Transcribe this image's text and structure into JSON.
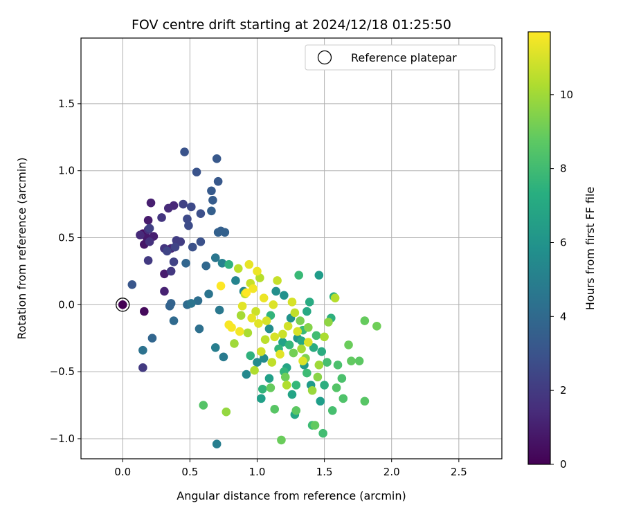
{
  "chart_data": {
    "type": "scatter",
    "title": "FOV centre drift starting at 2024/12/18 01:25:50",
    "xlabel": "Angular distance from reference (arcmin)",
    "ylabel": "Rotation from reference (arcmin)",
    "xlim": [
      -0.31,
      2.82
    ],
    "ylim": [
      -1.15,
      1.99
    ],
    "xticks": [
      0.0,
      0.5,
      1.0,
      1.5,
      2.0,
      2.5
    ],
    "xtick_labels": [
      "0.0",
      "0.5",
      "1.0",
      "1.5",
      "2.0",
      "2.5"
    ],
    "yticks": [
      -1.0,
      -0.5,
      0.0,
      0.5,
      1.0,
      1.5
    ],
    "ytick_labels": [
      "−1.0",
      "−0.5",
      "0.0",
      "0.5",
      "1.0",
      "1.5"
    ],
    "grid": true,
    "legend": {
      "position": "top-right",
      "entries": [
        "Reference platepar"
      ]
    },
    "reference_point": {
      "x": 0.0,
      "y": 0.0
    },
    "colorbar": {
      "label": "Hours from first FF file",
      "colormap": "viridis",
      "range": [
        0,
        11.7
      ],
      "ticks": [
        0,
        2,
        4,
        6,
        8,
        10
      ],
      "tick_labels": [
        "0",
        "2",
        "4",
        "6",
        "8",
        "10"
      ]
    },
    "points": [
      {
        "x": 0.16,
        "y": -0.05,
        "h": 0.3
      },
      {
        "x": 0.15,
        "y": 0.53,
        "h": 0.5
      },
      {
        "x": 0.16,
        "y": 0.45,
        "h": 0.7
      },
      {
        "x": 0.18,
        "y": 0.5,
        "h": 0.8
      },
      {
        "x": 0.19,
        "y": 0.63,
        "h": 0.9
      },
      {
        "x": 0.21,
        "y": 0.76,
        "h": 1.0
      },
      {
        "x": 0.23,
        "y": 0.51,
        "h": 1.0
      },
      {
        "x": 0.31,
        "y": 0.23,
        "h": 0.9
      },
      {
        "x": 0.31,
        "y": 0.1,
        "h": 1.1
      },
      {
        "x": 0.33,
        "y": 0.41,
        "h": 1.2
      },
      {
        "x": 0.36,
        "y": 0.42,
        "h": 1.3
      },
      {
        "x": 0.38,
        "y": 0.74,
        "h": 1.3
      },
      {
        "x": 0.34,
        "y": 0.72,
        "h": 1.4
      },
      {
        "x": 0.13,
        "y": 0.52,
        "h": 1.4
      },
      {
        "x": 0.19,
        "y": 0.56,
        "h": 1.6
      },
      {
        "x": 0.2,
        "y": 0.47,
        "h": 1.7
      },
      {
        "x": 0.29,
        "y": 0.65,
        "h": 1.8
      },
      {
        "x": 0.31,
        "y": 0.42,
        "h": 1.8
      },
      {
        "x": 0.36,
        "y": 0.25,
        "h": 1.9
      },
      {
        "x": 0.19,
        "y": 0.33,
        "h": 2.0
      },
      {
        "x": 0.15,
        "y": -0.47,
        "h": 2.0
      },
      {
        "x": 0.4,
        "y": 0.48,
        "h": 2.1
      },
      {
        "x": 0.43,
        "y": 0.47,
        "h": 2.1
      },
      {
        "x": 0.2,
        "y": 0.57,
        "h": 2.2
      },
      {
        "x": 0.38,
        "y": 0.32,
        "h": 2.3
      },
      {
        "x": 0.45,
        "y": 0.75,
        "h": 2.3
      },
      {
        "x": 0.39,
        "y": 0.43,
        "h": 2.4
      },
      {
        "x": 0.33,
        "y": 0.4,
        "h": 2.4
      },
      {
        "x": 0.51,
        "y": 0.73,
        "h": 2.6
      },
      {
        "x": 0.48,
        "y": 0.64,
        "h": 2.6
      },
      {
        "x": 0.49,
        "y": 0.59,
        "h": 2.7
      },
      {
        "x": 0.58,
        "y": 0.68,
        "h": 2.8
      },
      {
        "x": 0.58,
        "y": 0.47,
        "h": 2.9
      },
      {
        "x": 0.52,
        "y": 0.43,
        "h": 2.9
      },
      {
        "x": 0.55,
        "y": 0.99,
        "h": 3.0
      },
      {
        "x": 0.46,
        "y": 1.14,
        "h": 3.0
      },
      {
        "x": 0.07,
        "y": 0.15,
        "h": 3.1
      },
      {
        "x": 0.71,
        "y": 0.92,
        "h": 3.2
      },
      {
        "x": 0.7,
        "y": 1.09,
        "h": 3.2
      },
      {
        "x": 0.66,
        "y": 0.85,
        "h": 3.3
      },
      {
        "x": 0.67,
        "y": 0.78,
        "h": 3.4
      },
      {
        "x": 0.66,
        "y": 0.7,
        "h": 3.5
      },
      {
        "x": 0.73,
        "y": 0.55,
        "h": 3.5
      },
      {
        "x": 0.71,
        "y": 0.54,
        "h": 3.6
      },
      {
        "x": 0.76,
        "y": 0.54,
        "h": 3.6
      },
      {
        "x": 0.36,
        "y": 0.01,
        "h": 3.7
      },
      {
        "x": 0.35,
        "y": -0.01,
        "h": 3.7
      },
      {
        "x": 0.22,
        "y": -0.25,
        "h": 3.8
      },
      {
        "x": 0.47,
        "y": 0.31,
        "h": 3.8
      },
      {
        "x": 0.62,
        "y": 0.29,
        "h": 3.9
      },
      {
        "x": 0.38,
        "y": -0.12,
        "h": 4.0
      },
      {
        "x": 0.48,
        "y": 0.0,
        "h": 4.1
      },
      {
        "x": 0.56,
        "y": 0.03,
        "h": 4.2
      },
      {
        "x": 0.57,
        "y": -0.18,
        "h": 4.3
      },
      {
        "x": 0.15,
        "y": -0.34,
        "h": 4.4
      },
      {
        "x": 0.51,
        "y": 0.01,
        "h": 4.5
      },
      {
        "x": 0.64,
        "y": 0.08,
        "h": 4.5
      },
      {
        "x": 0.69,
        "y": 0.35,
        "h": 4.6
      },
      {
        "x": 0.72,
        "y": -0.04,
        "h": 4.7
      },
      {
        "x": 0.75,
        "y": -0.39,
        "h": 4.8
      },
      {
        "x": 0.69,
        "y": -0.32,
        "h": 5.0
      },
      {
        "x": 0.7,
        "y": -1.04,
        "h": 5.0
      },
      {
        "x": 0.74,
        "y": 0.31,
        "h": 5.2
      },
      {
        "x": 0.84,
        "y": 0.18,
        "h": 5.3
      },
      {
        "x": 0.9,
        "y": 0.1,
        "h": 5.4
      },
      {
        "x": 0.92,
        "y": -0.52,
        "h": 5.5
      },
      {
        "x": 1.0,
        "y": -0.43,
        "h": 5.6
      },
      {
        "x": 1.05,
        "y": -0.4,
        "h": 5.6
      },
      {
        "x": 1.09,
        "y": -0.18,
        "h": 5.7
      },
      {
        "x": 1.14,
        "y": 0.1,
        "h": 5.8
      },
      {
        "x": 1.2,
        "y": 0.07,
        "h": 5.9
      },
      {
        "x": 1.25,
        "y": -0.1,
        "h": 6.0
      },
      {
        "x": 1.3,
        "y": -0.25,
        "h": 6.1
      },
      {
        "x": 1.35,
        "y": -0.45,
        "h": 6.2
      },
      {
        "x": 1.4,
        "y": -0.6,
        "h": 6.3
      },
      {
        "x": 1.46,
        "y": 0.22,
        "h": 6.4
      },
      {
        "x": 1.47,
        "y": -0.72,
        "h": 6.5
      },
      {
        "x": 1.03,
        "y": -0.7,
        "h": 6.6
      },
      {
        "x": 1.09,
        "y": -0.55,
        "h": 6.6
      },
      {
        "x": 1.19,
        "y": -0.28,
        "h": 6.7
      },
      {
        "x": 1.22,
        "y": -0.47,
        "h": 6.8
      },
      {
        "x": 1.26,
        "y": -0.67,
        "h": 6.8
      },
      {
        "x": 1.28,
        "y": -0.82,
        "h": 6.9
      },
      {
        "x": 1.33,
        "y": -0.27,
        "h": 7.0
      },
      {
        "x": 1.37,
        "y": -0.05,
        "h": 7.0
      },
      {
        "x": 1.39,
        "y": 0.02,
        "h": 7.1
      },
      {
        "x": 1.42,
        "y": -0.32,
        "h": 7.2
      },
      {
        "x": 1.48,
        "y": -0.35,
        "h": 7.2
      },
      {
        "x": 1.5,
        "y": -0.6,
        "h": 7.3
      },
      {
        "x": 1.55,
        "y": -0.1,
        "h": 7.4
      },
      {
        "x": 1.57,
        "y": 0.06,
        "h": 7.4
      },
      {
        "x": 0.79,
        "y": 0.3,
        "h": 7.5
      },
      {
        "x": 0.95,
        "y": -0.38,
        "h": 7.5
      },
      {
        "x": 1.04,
        "y": -0.63,
        "h": 7.6
      },
      {
        "x": 1.1,
        "y": -0.08,
        "h": 7.6
      },
      {
        "x": 1.16,
        "y": -0.33,
        "h": 7.7
      },
      {
        "x": 1.2,
        "y": -0.5,
        "h": 7.7
      },
      {
        "x": 1.24,
        "y": -0.3,
        "h": 7.8
      },
      {
        "x": 1.29,
        "y": -0.6,
        "h": 7.8
      },
      {
        "x": 1.31,
        "y": 0.22,
        "h": 7.9
      },
      {
        "x": 1.34,
        "y": -0.19,
        "h": 7.9
      },
      {
        "x": 1.37,
        "y": -0.51,
        "h": 8.0
      },
      {
        "x": 1.41,
        "y": -0.9,
        "h": 8.0
      },
      {
        "x": 1.44,
        "y": -0.23,
        "h": 8.1
      },
      {
        "x": 1.49,
        "y": -0.96,
        "h": 8.1
      },
      {
        "x": 1.52,
        "y": -0.43,
        "h": 8.2
      },
      {
        "x": 1.56,
        "y": -0.79,
        "h": 8.2
      },
      {
        "x": 1.6,
        "y": -0.45,
        "h": 8.3
      },
      {
        "x": 1.63,
        "y": -0.55,
        "h": 8.3
      },
      {
        "x": 1.64,
        "y": -0.7,
        "h": 8.4
      },
      {
        "x": 0.6,
        "y": -0.75,
        "h": 8.5
      },
      {
        "x": 1.13,
        "y": -0.78,
        "h": 8.6
      },
      {
        "x": 1.29,
        "y": -0.79,
        "h": 8.7
      },
      {
        "x": 1.43,
        "y": -0.9,
        "h": 8.8
      },
      {
        "x": 1.1,
        "y": -0.62,
        "h": 8.9
      },
      {
        "x": 1.18,
        "y": -1.01,
        "h": 9.0
      },
      {
        "x": 1.21,
        "y": -0.54,
        "h": 9.1
      },
      {
        "x": 1.27,
        "y": -0.36,
        "h": 9.2
      },
      {
        "x": 1.32,
        "y": -0.12,
        "h": 9.3
      },
      {
        "x": 1.36,
        "y": -0.4,
        "h": 9.4
      },
      {
        "x": 1.38,
        "y": -0.17,
        "h": 9.5
      },
      {
        "x": 1.45,
        "y": -0.54,
        "h": 9.6
      },
      {
        "x": 1.53,
        "y": -0.13,
        "h": 9.7
      },
      {
        "x": 1.8,
        "y": -0.12,
        "h": 8.9
      },
      {
        "x": 1.89,
        "y": -0.16,
        "h": 9.1
      },
      {
        "x": 1.76,
        "y": -0.42,
        "h": 8.7
      },
      {
        "x": 1.7,
        "y": -0.42,
        "h": 8.8
      },
      {
        "x": 1.8,
        "y": -0.72,
        "h": 8.6
      },
      {
        "x": 1.59,
        "y": -0.62,
        "h": 8.5
      },
      {
        "x": 1.68,
        "y": -0.3,
        "h": 9.0
      },
      {
        "x": 0.77,
        "y": -0.8,
        "h": 9.8
      },
      {
        "x": 0.83,
        "y": -0.29,
        "h": 10.0
      },
      {
        "x": 0.88,
        "y": -0.08,
        "h": 10.1
      },
      {
        "x": 0.93,
        "y": -0.21,
        "h": 10.2
      },
      {
        "x": 0.98,
        "y": -0.49,
        "h": 10.3
      },
      {
        "x": 1.02,
        "y": 0.2,
        "h": 10.4
      },
      {
        "x": 1.06,
        "y": -0.26,
        "h": 10.5
      },
      {
        "x": 1.11,
        "y": -0.43,
        "h": 10.6
      },
      {
        "x": 1.15,
        "y": 0.18,
        "h": 10.7
      },
      {
        "x": 1.19,
        "y": -0.22,
        "h": 10.8
      },
      {
        "x": 1.23,
        "y": -0.16,
        "h": 10.9
      },
      {
        "x": 1.26,
        "y": 0.02,
        "h": 11.0
      },
      {
        "x": 1.3,
        "y": -0.2,
        "h": 11.0
      },
      {
        "x": 1.34,
        "y": -0.42,
        "h": 11.1
      },
      {
        "x": 1.38,
        "y": -0.28,
        "h": 11.1
      },
      {
        "x": 1.41,
        "y": -0.64,
        "h": 9.9
      },
      {
        "x": 1.46,
        "y": -0.45,
        "h": 10.0
      },
      {
        "x": 1.5,
        "y": -0.24,
        "h": 10.2
      },
      {
        "x": 1.58,
        "y": 0.05,
        "h": 10.4
      },
      {
        "x": 0.86,
        "y": 0.27,
        "h": 10.5
      },
      {
        "x": 0.91,
        "y": 0.08,
        "h": 10.6
      },
      {
        "x": 0.95,
        "y": 0.16,
        "h": 10.7
      },
      {
        "x": 0.99,
        "y": -0.05,
        "h": 10.8
      },
      {
        "x": 1.03,
        "y": -0.35,
        "h": 10.9
      },
      {
        "x": 1.07,
        "y": -0.12,
        "h": 11.0
      },
      {
        "x": 1.12,
        "y": 0.0,
        "h": 11.1
      },
      {
        "x": 1.17,
        "y": -0.37,
        "h": 11.2
      },
      {
        "x": 1.22,
        "y": -0.6,
        "h": 10.3
      },
      {
        "x": 0.89,
        "y": -0.01,
        "h": 11.2
      },
      {
        "x": 0.94,
        "y": 0.3,
        "h": 11.3
      },
      {
        "x": 1.0,
        "y": 0.25,
        "h": 11.4
      },
      {
        "x": 1.05,
        "y": 0.05,
        "h": 11.4
      },
      {
        "x": 0.97,
        "y": 0.12,
        "h": 11.5
      },
      {
        "x": 0.87,
        "y": -0.2,
        "h": 11.5
      },
      {
        "x": 0.81,
        "y": -0.17,
        "h": 11.6
      },
      {
        "x": 0.79,
        "y": -0.15,
        "h": 11.6
      },
      {
        "x": 0.73,
        "y": 0.14,
        "h": 11.7
      },
      {
        "x": 0.92,
        "y": 0.09,
        "h": 11.7
      },
      {
        "x": 0.96,
        "y": -0.1,
        "h": 11.3
      },
      {
        "x": 1.01,
        "y": -0.14,
        "h": 11.2
      },
      {
        "x": 1.13,
        "y": -0.24,
        "h": 11.0
      },
      {
        "x": 1.28,
        "y": -0.06,
        "h": 10.6
      },
      {
        "x": 1.33,
        "y": -0.33,
        "h": 10.1
      }
    ]
  }
}
